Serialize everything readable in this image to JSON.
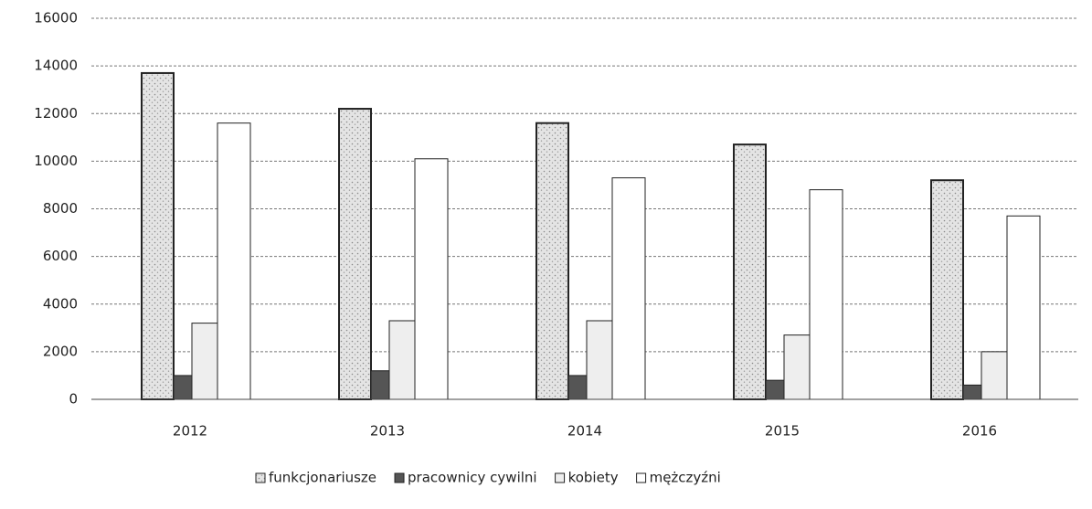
{
  "chart_data": {
    "type": "bar",
    "categories": [
      "2012",
      "2013",
      "2014",
      "2015",
      "2016"
    ],
    "series": [
      {
        "name": "funkcjonariusze",
        "color": "#c8c8c8",
        "values": [
          13700,
          12200,
          11600,
          10700,
          9200
        ]
      },
      {
        "name": "pracownicy cywilni",
        "color": "#555555",
        "values": [
          1000,
          1200,
          1000,
          800,
          600
        ]
      },
      {
        "name": "kobiety",
        "color": "#eeeeee",
        "values": [
          3200,
          3300,
          3300,
          2700,
          2000
        ]
      },
      {
        "name": "mężczyźni",
        "color": "#ffffff",
        "values": [
          11600,
          10100,
          9300,
          8800,
          7700
        ]
      }
    ],
    "ylim": [
      0,
      16000
    ],
    "yticks": [
      0,
      2000,
      4000,
      6000,
      8000,
      10000,
      12000,
      14000,
      16000
    ],
    "grid": true,
    "legend": "bottom"
  }
}
